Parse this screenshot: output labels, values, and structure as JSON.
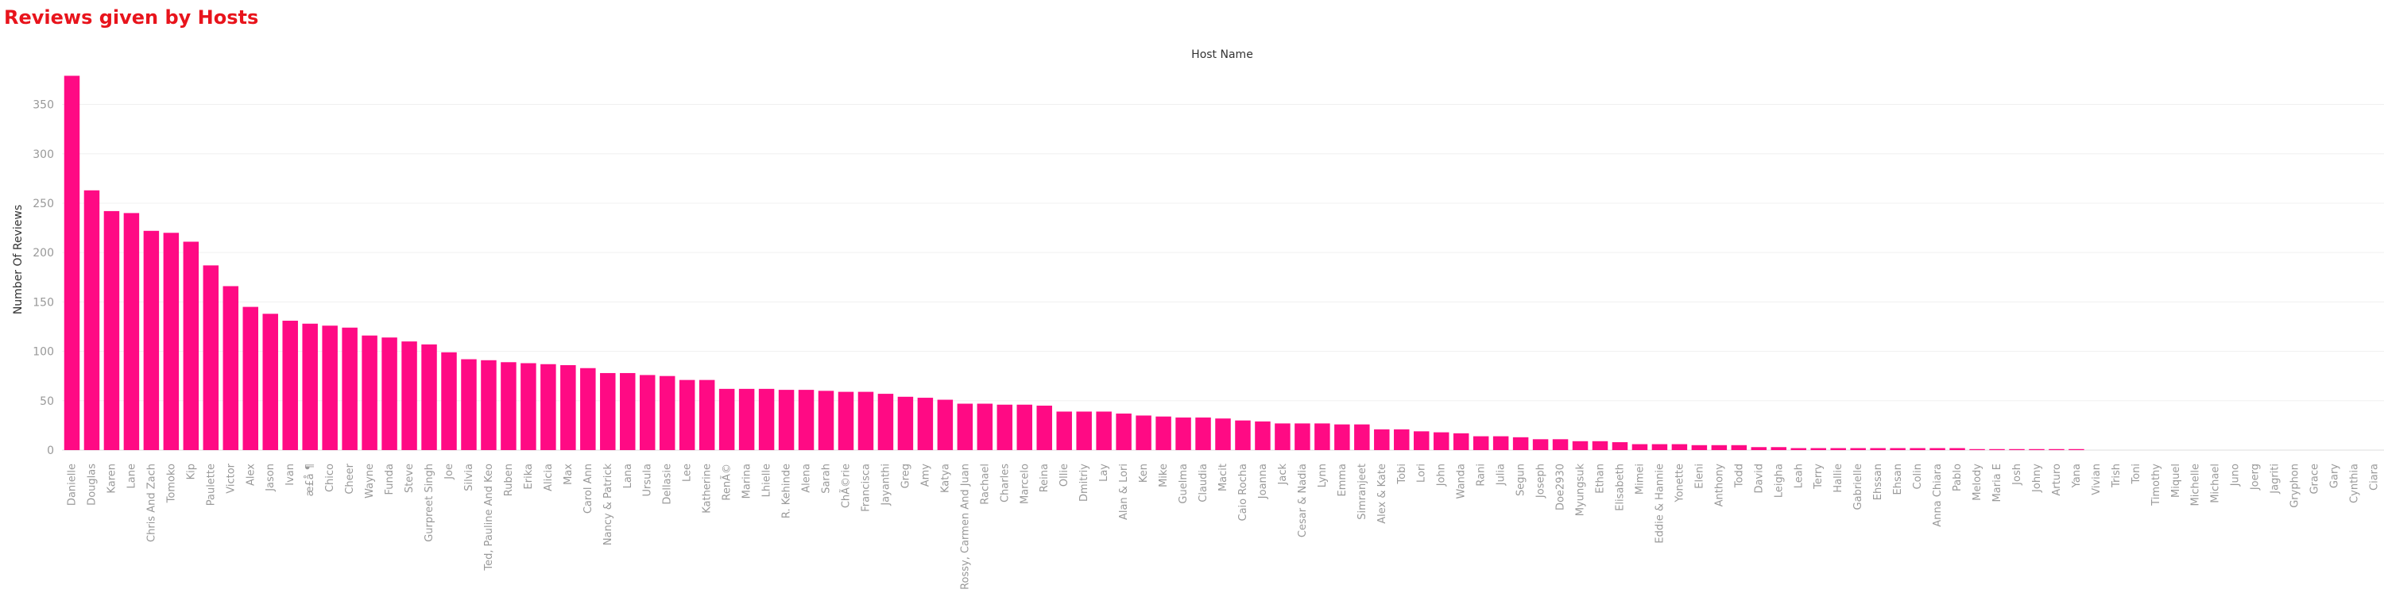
{
  "chart_data": {
    "type": "bar",
    "title": "Reviews given by Hosts",
    "xlabel": "Host Name",
    "ylabel": "Number Of Reviews",
    "ylim": [
      0,
      385
    ],
    "yticks": [
      0,
      50,
      100,
      150,
      200,
      250,
      300,
      350
    ],
    "grid": true,
    "bar_color": "#ff0a84",
    "categories": [
      "Danielle",
      "Douglas",
      "Karen",
      "Lane",
      "Chris And Zach",
      "Tomoko",
      "Kip",
      "Paulette",
      "Victor",
      "Alex",
      "Jason",
      "Ivan",
      "æ£å ¶",
      "Chico",
      "Cheer",
      "Wayne",
      "Funda",
      "Steve",
      "Gurpreet  Singh",
      "Joe",
      "Silvia",
      "Ted, Pauline And Keo",
      "Ruben",
      "Erika",
      "Alicia",
      "Max",
      "Carol Ann",
      "Nancy & Patrick",
      "Lana",
      "Ursula",
      "Dellasie",
      "Lee",
      "Katherine",
      "RenÃ©",
      "Marina",
      "Lhielle",
      "R. Kehinde",
      "Alena",
      "Sarah",
      "ChÃ©rie",
      "Francisca",
      "Jayanthi",
      "Greg",
      "Amy",
      "Katya",
      "Rossy,  Carmen And Juan",
      "Rachael",
      "Charles",
      "Marcelo",
      "Reina",
      "Ollie",
      "Dmitriy",
      "Lay",
      "Alan & Lori",
      "Ken",
      "Mike",
      "Guelma",
      "Claudia",
      "Macit",
      "Caio Rocha",
      "Joanna",
      "Jack",
      "Cesar & Nadia",
      "Lynn",
      "Emma",
      "Simranjeet",
      "Alex & Kate",
      "Tobi",
      "Lori",
      "John",
      "Wanda",
      "Rani",
      "Julia",
      "Segun",
      "Joseph",
      "Doe2930",
      "Myungsuk",
      "Ethan",
      "Elisabeth",
      "Mimei",
      "Eddie & Hannie",
      "Yonette",
      "Eleni",
      "Anthony",
      "Todd",
      "David",
      "Leigha",
      "Leah",
      "Terry",
      "Hallie",
      "Gabrielle",
      "Ehssan",
      "Ehsan",
      "Colin",
      "Anna Chiara",
      "Pablo",
      "Melody",
      "Maria E",
      "Josh",
      "Johny",
      "Arturo",
      "Yana",
      "Vivian",
      "Trish",
      "Toni",
      "Timothy",
      "Miquel",
      "Michelle",
      "Michael",
      "Juno",
      "Joerg",
      "Jagriti",
      "Gryphon",
      "Grace",
      "Gary",
      "Cynthia",
      "Ciara"
    ],
    "values": [
      379,
      263,
      242,
      240,
      222,
      220,
      211,
      187,
      166,
      145,
      138,
      131,
      128,
      126,
      124,
      116,
      114,
      110,
      107,
      99,
      92,
      91,
      89,
      88,
      87,
      86,
      83,
      78,
      78,
      76,
      75,
      71,
      71,
      62,
      62,
      62,
      61,
      61,
      60,
      59,
      59,
      57,
      54,
      53,
      51,
      47,
      47,
      46,
      46,
      45,
      39,
      39,
      39,
      37,
      35,
      34,
      33,
      33,
      32,
      30,
      29,
      27,
      27,
      27,
      26,
      26,
      21,
      21,
      19,
      18,
      17,
      14,
      14,
      13,
      11,
      11,
      9,
      9,
      8,
      6,
      6,
      6,
      5,
      5,
      5,
      3,
      3,
      2,
      2,
      2,
      2,
      2,
      2,
      2,
      2,
      2,
      1,
      1,
      1,
      1,
      1,
      1,
      0,
      0,
      0,
      0,
      0,
      0,
      0,
      0,
      0,
      0,
      0,
      0,
      0,
      0,
      0
    ]
  }
}
